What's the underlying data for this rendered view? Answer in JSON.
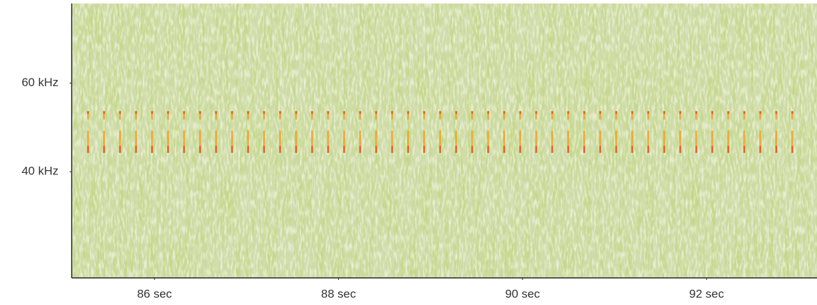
{
  "chart_data": {
    "type": "spectrogram",
    "xlim": [
      85.1,
      93.2
    ],
    "ylim": [
      16,
      78
    ],
    "xticks": [
      {
        "value": 86,
        "label": "86  sec"
      },
      {
        "value": 88,
        "label": "88  sec"
      },
      {
        "value": 90,
        "label": "90  sec"
      },
      {
        "value": 92,
        "label": "92  sec"
      }
    ],
    "yticks": [
      {
        "value": 60,
        "label": "60 kHz"
      },
      {
        "value": 40,
        "label": "40 kHz"
      }
    ]
  }
}
